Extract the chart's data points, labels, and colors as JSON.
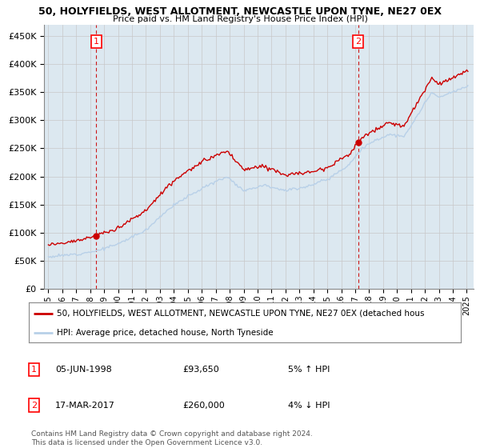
{
  "title": "50, HOLYFIELDS, WEST ALLOTMENT, NEWCASTLE UPON TYNE, NE27 0EX",
  "subtitle": "Price paid vs. HM Land Registry's House Price Index (HPI)",
  "ylim": [
    0,
    470000
  ],
  "yticks": [
    0,
    50000,
    100000,
    150000,
    200000,
    250000,
    300000,
    350000,
    400000,
    450000
  ],
  "sale1_year": 1998.43,
  "sale1_price": 93650,
  "sale1_date": "05-JUN-1998",
  "sale1_hpi_pct": "5%",
  "sale1_hpi_dir": "↑",
  "sale2_year": 2017.21,
  "sale2_price": 260000,
  "sale2_date": "17-MAR-2017",
  "sale2_hpi_pct": "4%",
  "sale2_hpi_dir": "↓",
  "legend_line1": "50, HOLYFIELDS, WEST ALLOTMENT, NEWCASTLE UPON TYNE, NE27 0EX (detached hous",
  "legend_line2": "HPI: Average price, detached house, North Tyneside",
  "footnote1": "Contains HM Land Registry data © Crown copyright and database right 2024.",
  "footnote2": "This data is licensed under the Open Government Licence v3.0.",
  "hpi_color": "#b8d0e8",
  "price_color": "#cc0000",
  "bg_color": "#dce8f0",
  "plot_bg": "#ffffff",
  "grid_color": "#c8c8c8",
  "vline_color": "#cc0000"
}
